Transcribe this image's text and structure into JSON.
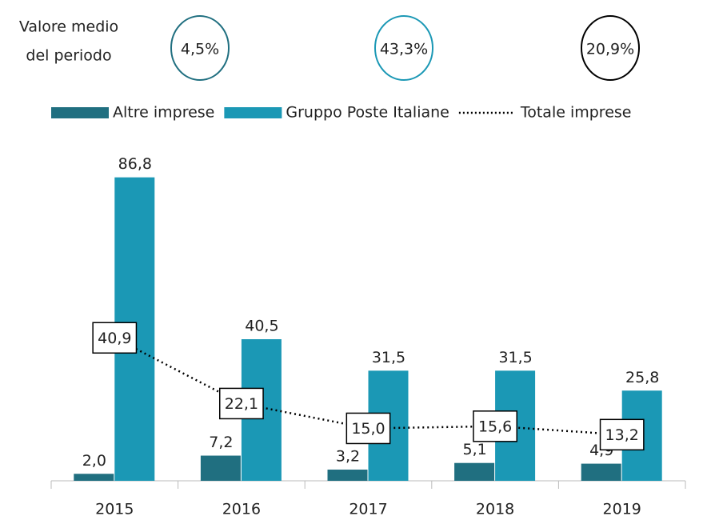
{
  "chart_data": {
    "type": "bar",
    "summary_label": [
      "Valore medio",
      "del periodo"
    ],
    "summary": [
      "4,5%",
      "43,3%",
      "20,9%"
    ],
    "categories": [
      "2015",
      "2016",
      "2017",
      "2018",
      "2019"
    ],
    "ylim": [
      0,
      100
    ],
    "series": [
      {
        "name": "Altre imprese",
        "color": "#206f80",
        "values": [
          2.0,
          7.2,
          3.2,
          5.1,
          4.9
        ],
        "value_labels": [
          "2,0",
          "7,2",
          "3,2",
          "5,1",
          "4,9"
        ]
      },
      {
        "name": "Gruppo Poste Italiane",
        "color": "#1b98b5",
        "values": [
          86.8,
          40.5,
          31.5,
          31.5,
          25.8
        ],
        "value_labels": [
          "86,8",
          "40,5",
          "31,5",
          "31,5",
          "25,8"
        ]
      },
      {
        "name": "Totale imprese",
        "type": "line",
        "color": "#000000",
        "values": [
          40.9,
          22.1,
          15.0,
          15.6,
          13.2
        ],
        "value_labels": [
          "40,9",
          "22,1",
          "15,0",
          "15,6",
          "13,2"
        ]
      }
    ]
  }
}
